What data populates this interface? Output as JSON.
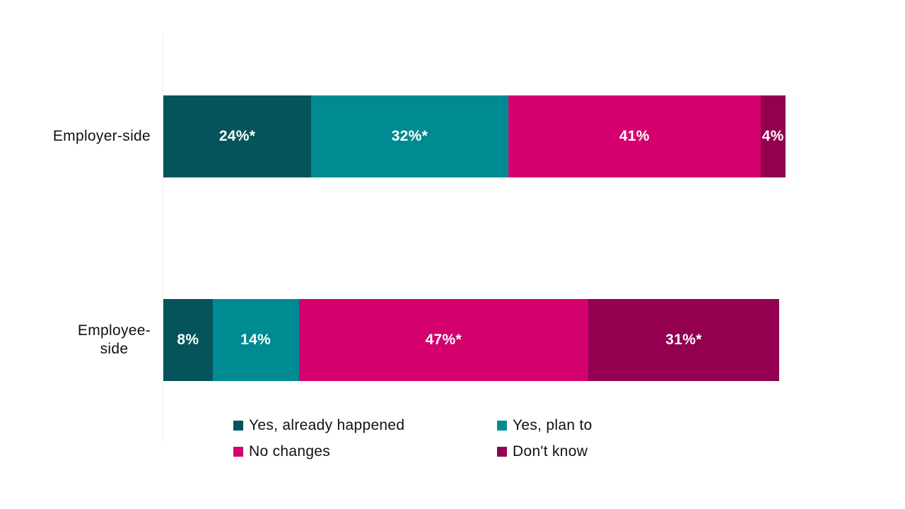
{
  "colors": {
    "already_happened": "#05545B",
    "plan_to": "#008A91",
    "no_changes": "#D3006E",
    "dont_know": "#92004F",
    "axis_line": "#D9D9D9",
    "text": "#111111",
    "bar_label_text": "#FFFFFF",
    "background": "#FFFFFF"
  },
  "chart_data": {
    "type": "bar",
    "orientation": "horizontal",
    "stacked": true,
    "title": "",
    "xlabel": "",
    "ylabel": "",
    "xlim": [
      0,
      101
    ],
    "grid": false,
    "legend_position": "bottom",
    "legend_columns": 2,
    "categories": [
      {
        "label": "Employer-side",
        "lines": [
          "Employer-side"
        ]
      },
      {
        "label": "Employee-side",
        "lines": [
          "Employee-",
          "side"
        ]
      }
    ],
    "series": [
      {
        "name": "Yes, already happened",
        "color": "#05545B",
        "values": [
          24,
          8
        ],
        "labels": [
          "24%*",
          "8%"
        ]
      },
      {
        "name": "Yes, plan to",
        "color": "#008A91",
        "values": [
          32,
          14
        ],
        "labels": [
          "32%*",
          "14%"
        ]
      },
      {
        "name": "No changes",
        "color": "#D3006E",
        "values": [
          41,
          47
        ],
        "labels": [
          "41%",
          "47%*"
        ]
      },
      {
        "name": "Don't know",
        "color": "#92004F",
        "values": [
          4,
          31
        ],
        "labels": [
          "4%",
          "31%*"
        ]
      }
    ]
  },
  "legend": {
    "items": [
      {
        "label": "Yes, already happened",
        "color": "#05545B"
      },
      {
        "label": "Yes, plan to",
        "color": "#008A91"
      },
      {
        "label": "No changes",
        "color": "#D3006E"
      },
      {
        "label": "Don't know",
        "color": "#92004F"
      }
    ]
  }
}
